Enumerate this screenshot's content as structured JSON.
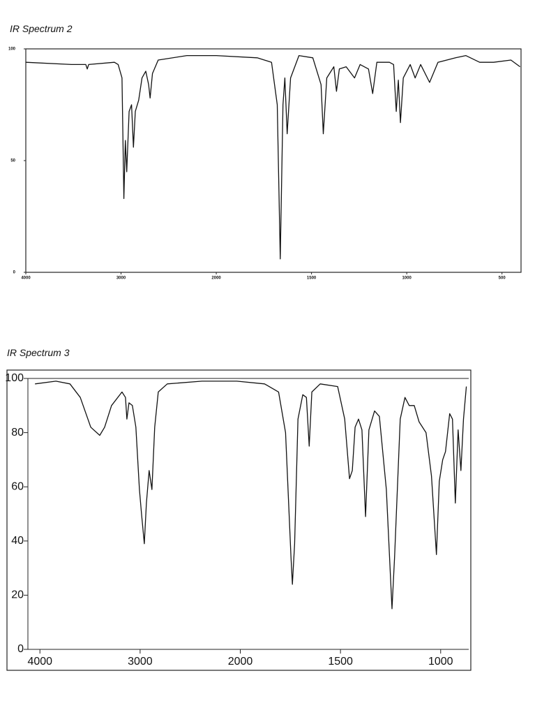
{
  "chart_data": [
    {
      "type": "line",
      "title": "IR Spectrum 2",
      "xscale": "tick-spaced",
      "x_reversed": true,
      "xlim": [
        4000,
        400
      ],
      "xticks": [
        4000,
        3000,
        2000,
        1500,
        1000,
        500
      ],
      "ylim": [
        0,
        100
      ],
      "yticks": [
        0,
        50,
        100
      ],
      "color": "#111111",
      "x": [
        4000,
        3520,
        3370,
        3355,
        3340,
        3070,
        3030,
        2990,
        2970,
        2955,
        2940,
        2915,
        2890,
        2870,
        2850,
        2815,
        2780,
        2740,
        2710,
        2695,
        2670,
        2610,
        2310,
        2000,
        1785,
        1710,
        1680,
        1664,
        1650,
        1640,
        1628,
        1610,
        1566,
        1493,
        1450,
        1438,
        1420,
        1383,
        1369,
        1354,
        1318,
        1274,
        1245,
        1201,
        1179,
        1157,
        1091,
        1069,
        1055,
        1044,
        1033,
        1018,
        982,
        956,
        927,
        880,
        836,
        744,
        690,
        617,
        544,
        453,
        405
      ],
      "values": [
        94,
        93,
        93,
        91,
        93,
        94,
        93,
        87,
        33,
        59,
        45,
        72,
        75,
        56,
        72,
        77,
        87,
        90,
        84,
        78,
        89,
        95,
        97,
        97,
        96,
        94,
        75,
        6,
        75,
        87,
        62,
        87,
        97,
        96,
        84,
        62,
        87,
        92,
        81,
        91,
        92,
        87,
        93,
        91,
        80,
        94,
        94,
        93,
        72,
        86,
        67,
        87,
        93,
        87,
        93,
        85,
        94,
        96,
        97,
        94,
        94,
        95,
        92
      ]
    },
    {
      "type": "line",
      "title": "IR Spectrum 3",
      "xscale": "tick-spaced",
      "x_reversed": true,
      "xlim": [
        4120,
        860
      ],
      "xticks": [
        4000,
        3000,
        2000,
        1500,
        1000
      ],
      "ylim": [
        0,
        100
      ],
      "yticks": [
        0,
        20,
        40,
        60,
        80,
        100
      ],
      "color": "#111111",
      "x": [
        4049,
        3840,
        3700,
        3597,
        3493,
        3403,
        3354,
        3285,
        3181,
        3146,
        3132,
        3111,
        3077,
        3042,
        3007,
        2986,
        2958,
        2937,
        2910,
        2882,
        2854,
        2819,
        2729,
        2382,
        2035,
        1879,
        1809,
        1774,
        1747,
        1740,
        1729,
        1712,
        1688,
        1670,
        1656,
        1643,
        1601,
        1514,
        1479,
        1455,
        1441,
        1427,
        1410,
        1393,
        1375,
        1358,
        1330,
        1306,
        1271,
        1243,
        1230,
        1202,
        1178,
        1157,
        1132,
        1108,
        1073,
        1046,
        1021,
        1007,
        990,
        976,
        955,
        941,
        927,
        913,
        899,
        886,
        872
      ],
      "values": [
        98,
        99,
        98,
        93,
        82,
        79,
        82,
        90,
        95,
        93,
        85,
        91,
        90,
        82,
        59,
        50,
        39,
        54,
        66,
        59,
        82,
        95,
        98,
        99,
        99,
        98,
        95,
        80,
        34,
        24,
        39,
        85,
        94,
        93,
        75,
        95,
        98,
        97,
        85,
        63,
        66,
        82,
        85,
        81,
        49,
        81,
        88,
        86,
        59,
        15,
        34,
        85,
        93,
        90,
        90,
        84,
        80,
        64,
        35,
        62,
        70,
        73,
        87,
        85,
        54,
        81,
        66,
        85,
        97
      ]
    }
  ]
}
